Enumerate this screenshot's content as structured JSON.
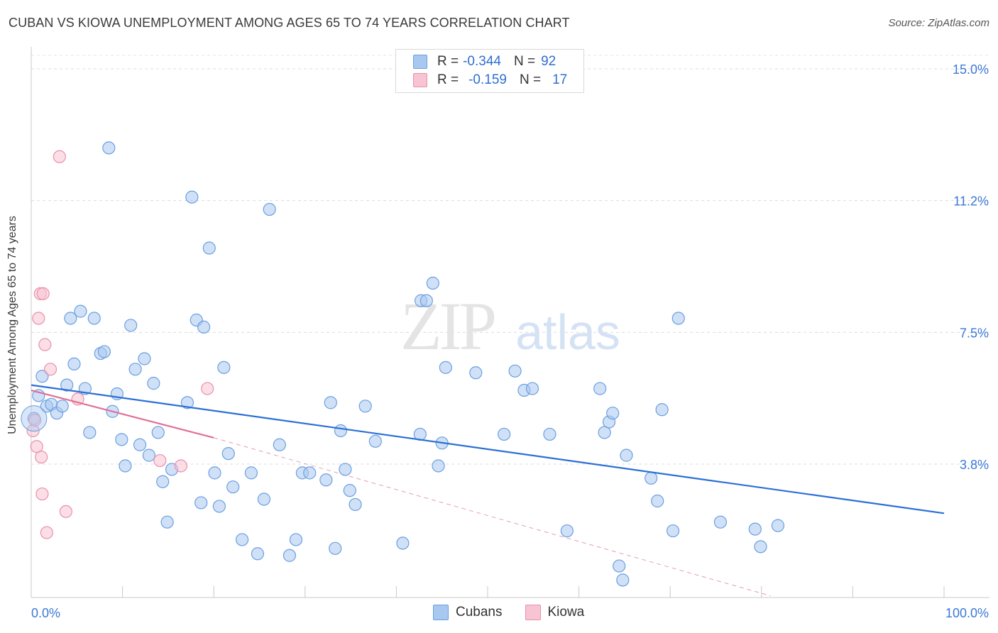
{
  "title": "CUBAN VS KIOWA UNEMPLOYMENT AMONG AGES 65 TO 74 YEARS CORRELATION CHART",
  "source": "Source: ZipAtlas.com",
  "watermark": {
    "zip": "ZIP",
    "atlas": "atlas"
  },
  "legend": {
    "rows": [
      {
        "r_label": "R =",
        "r_value": "-0.344",
        "n_label": "N =",
        "n_value": "92",
        "color": "#a9c8f0",
        "border": "#6a9fe0"
      },
      {
        "r_label": "R =",
        "r_value": "-0.159",
        "n_label": "N =",
        "n_value": "17",
        "color": "#f8c3d2",
        "border": "#e891ab"
      }
    ]
  },
  "bottom_legend": {
    "cubans": "Cubans",
    "kiowa": "Kiowa"
  },
  "chart_data": {
    "type": "scatter",
    "xlabel": "",
    "ylabel": "Unemployment Among Ages 65 to 74 years",
    "x_tick_labels": [
      "0.0%",
      "100.0%"
    ],
    "y_tick_labels": [
      "15.0%",
      "11.2%",
      "7.5%",
      "3.8%"
    ],
    "y_ticks": [
      15.0,
      11.25,
      7.5,
      3.75
    ],
    "xlim": [
      0,
      100
    ],
    "ylim": [
      0,
      15.7
    ],
    "grid": true,
    "series": [
      {
        "name": "Cubans",
        "color": "#a9c8f0",
        "stroke": "#6a9fe0",
        "trend": {
          "x0": 0,
          "y0": 6.0,
          "x1": 100,
          "y1": 2.35,
          "color": "#2b6fd6"
        },
        "points": [
          [
            0.3,
            5.05
          ],
          [
            0.8,
            5.7
          ],
          [
            1.2,
            6.25
          ],
          [
            1.7,
            5.4
          ],
          [
            2.2,
            5.45
          ],
          [
            2.8,
            5.2
          ],
          [
            3.4,
            5.4
          ],
          [
            3.9,
            6.0
          ],
          [
            4.3,
            7.9
          ],
          [
            4.7,
            6.6
          ],
          [
            5.4,
            8.1
          ],
          [
            5.9,
            5.9
          ],
          [
            6.4,
            4.65
          ],
          [
            6.9,
            7.9
          ],
          [
            7.6,
            6.9
          ],
          [
            8.0,
            6.95
          ],
          [
            8.5,
            12.75
          ],
          [
            8.9,
            5.25
          ],
          [
            9.4,
            5.75
          ],
          [
            9.9,
            4.45
          ],
          [
            10.3,
            3.7
          ],
          [
            10.9,
            7.7
          ],
          [
            11.4,
            6.45
          ],
          [
            11.9,
            4.3
          ],
          [
            12.4,
            6.75
          ],
          [
            12.9,
            4.0
          ],
          [
            13.4,
            6.05
          ],
          [
            13.9,
            4.65
          ],
          [
            14.4,
            3.25
          ],
          [
            14.9,
            2.1
          ],
          [
            15.4,
            3.6
          ],
          [
            17.1,
            5.5
          ],
          [
            17.6,
            11.35
          ],
          [
            18.1,
            7.85
          ],
          [
            18.6,
            2.65
          ],
          [
            18.9,
            7.65
          ],
          [
            19.5,
            9.9
          ],
          [
            20.1,
            3.5
          ],
          [
            20.6,
            2.55
          ],
          [
            21.1,
            6.5
          ],
          [
            21.6,
            4.05
          ],
          [
            22.1,
            3.1
          ],
          [
            23.1,
            1.6
          ],
          [
            24.1,
            3.5
          ],
          [
            24.8,
            1.2
          ],
          [
            25.5,
            2.75
          ],
          [
            26.1,
            11.0
          ],
          [
            27.2,
            4.3
          ],
          [
            28.3,
            1.15
          ],
          [
            29.0,
            1.6
          ],
          [
            29.7,
            3.5
          ],
          [
            30.5,
            3.5
          ],
          [
            32.3,
            3.3
          ],
          [
            32.8,
            5.5
          ],
          [
            33.3,
            1.35
          ],
          [
            33.9,
            4.7
          ],
          [
            34.4,
            3.6
          ],
          [
            34.9,
            3.0
          ],
          [
            35.5,
            2.6
          ],
          [
            36.6,
            5.4
          ],
          [
            37.7,
            4.4
          ],
          [
            40.7,
            1.5
          ],
          [
            42.6,
            4.6
          ],
          [
            42.7,
            8.4
          ],
          [
            43.3,
            8.4
          ],
          [
            44.0,
            8.9
          ],
          [
            44.6,
            3.7
          ],
          [
            45.0,
            4.35
          ],
          [
            45.4,
            6.5
          ],
          [
            48.7,
            6.35
          ],
          [
            51.8,
            4.6
          ],
          [
            53.0,
            6.4
          ],
          [
            54.0,
            5.85
          ],
          [
            54.9,
            5.9
          ],
          [
            56.8,
            4.6
          ],
          [
            58.7,
            1.85
          ],
          [
            62.3,
            5.9
          ],
          [
            62.8,
            4.65
          ],
          [
            63.3,
            4.95
          ],
          [
            63.7,
            5.2
          ],
          [
            64.4,
            0.85
          ],
          [
            64.8,
            0.45
          ],
          [
            65.2,
            4.0
          ],
          [
            67.9,
            3.35
          ],
          [
            68.6,
            2.7
          ],
          [
            69.1,
            5.3
          ],
          [
            70.3,
            1.85
          ],
          [
            70.9,
            7.9
          ],
          [
            75.5,
            2.1
          ],
          [
            79.3,
            1.9
          ],
          [
            79.9,
            1.4
          ],
          [
            81.8,
            2.0
          ]
        ]
      },
      {
        "name": "Kiowa",
        "color": "#f8c3d2",
        "stroke": "#e891ab",
        "trend": {
          "x0": 0,
          "y0": 5.85,
          "x1": 20,
          "y1": 4.5,
          "color": "#e07095"
        },
        "trend_ext": {
          "x0": 20,
          "y0": 4.5,
          "x1": 81,
          "y1": 0.0,
          "color": "#e07095"
        },
        "points": [
          [
            0.2,
            4.7
          ],
          [
            0.4,
            5.0
          ],
          [
            0.6,
            4.25
          ],
          [
            0.8,
            7.9
          ],
          [
            1.0,
            8.6
          ],
          [
            1.1,
            3.95
          ],
          [
            1.2,
            2.9
          ],
          [
            1.3,
            8.6
          ],
          [
            1.5,
            7.15
          ],
          [
            1.7,
            1.8
          ],
          [
            2.1,
            6.45
          ],
          [
            3.1,
            12.5
          ],
          [
            3.8,
            2.4
          ],
          [
            5.1,
            5.6
          ],
          [
            14.1,
            3.85
          ],
          [
            16.4,
            3.7
          ],
          [
            19.3,
            5.9
          ]
        ]
      }
    ]
  }
}
